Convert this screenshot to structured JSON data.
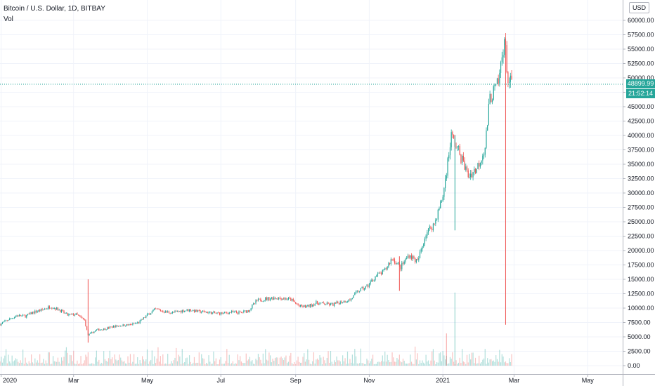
{
  "legend": {
    "title": "Bitcoin / U.S. Dollar, 1D, BITBAY",
    "indicator": "Vol"
  },
  "currency_label": "USD",
  "last_price": {
    "value_label": "48899.99",
    "countdown": "21:52:14",
    "color": "#26a69a"
  },
  "colors": {
    "up": "#26a69a",
    "down": "#ef5350",
    "grid": "#f0f3fa"
  },
  "chart_data": {
    "type": "candlestick",
    "symbol": "Bitcoin / U.S. Dollar",
    "interval": "1D",
    "exchange": "BITBAY",
    "ylim": [
      -1200,
      62500
    ],
    "y_ticks": [
      0,
      2500,
      5000,
      7500,
      10000,
      12500,
      15000,
      17500,
      20000,
      22500,
      25000,
      27500,
      30000,
      32500,
      35000,
      37500,
      40000,
      42500,
      45000,
      47500,
      50000,
      52500,
      55000,
      57500,
      60000
    ],
    "y_tick_labels": [
      "0.00",
      "2500.00",
      "5000.00",
      "7500.00",
      "10000.00",
      "12500.00",
      "15000.00",
      "17500.00",
      "20000.00",
      "22500.00",
      "25000.00",
      "27500.00",
      "30000.00",
      "32500.00",
      "35000.00",
      "37500.00",
      "40000.00",
      "42500.00",
      "45000.00",
      "47500.00",
      "50000.00",
      "52500.00",
      "55000.00",
      "57500.00",
      "60000.00"
    ],
    "x_ticks": [
      {
        "label": "2020",
        "date": "2020-01-01"
      },
      {
        "label": "Mar",
        "date": "2020-03-01"
      },
      {
        "label": "May",
        "date": "2020-05-01"
      },
      {
        "label": "Jul",
        "date": "2020-07-01"
      },
      {
        "label": "Sep",
        "date": "2020-09-01"
      },
      {
        "label": "Nov",
        "date": "2020-11-01"
      },
      {
        "label": "2021",
        "date": "2021-01-01"
      },
      {
        "label": "Mar",
        "date": "2021-03-01"
      },
      {
        "label": "May",
        "date": "2021-05-01"
      }
    ],
    "x_range": [
      "2019-12-31",
      "2021-05-30"
    ],
    "last_price": 48899.99,
    "price_series": [
      [
        "2019-12-31",
        7200
      ],
      [
        "2020-01-07",
        8000
      ],
      [
        "2020-01-14",
        8700
      ],
      [
        "2020-01-21",
        8600
      ],
      [
        "2020-01-28",
        9300
      ],
      [
        "2020-02-04",
        9700
      ],
      [
        "2020-02-11",
        10300
      ],
      [
        "2020-02-18",
        9700
      ],
      [
        "2020-02-25",
        8800
      ],
      [
        "2020-03-03",
        8900
      ],
      [
        "2020-03-10",
        7900
      ],
      [
        "2020-03-13",
        5300
      ],
      [
        "2020-03-20",
        6200
      ],
      [
        "2020-03-27",
        6400
      ],
      [
        "2020-04-03",
        6800
      ],
      [
        "2020-04-10",
        7000
      ],
      [
        "2020-04-17",
        7100
      ],
      [
        "2020-04-24",
        7500
      ],
      [
        "2020-05-01",
        8800
      ],
      [
        "2020-05-08",
        9800
      ],
      [
        "2020-05-15",
        9400
      ],
      [
        "2020-05-22",
        9200
      ],
      [
        "2020-05-29",
        9500
      ],
      [
        "2020-06-05",
        9700
      ],
      [
        "2020-06-12",
        9400
      ],
      [
        "2020-06-19",
        9300
      ],
      [
        "2020-06-26",
        9100
      ],
      [
        "2020-07-03",
        9100
      ],
      [
        "2020-07-10",
        9300
      ],
      [
        "2020-07-17",
        9200
      ],
      [
        "2020-07-24",
        9600
      ],
      [
        "2020-07-31",
        11300
      ],
      [
        "2020-08-07",
        11600
      ],
      [
        "2020-08-14",
        11800
      ],
      [
        "2020-08-21",
        11700
      ],
      [
        "2020-08-28",
        11500
      ],
      [
        "2020-09-04",
        10300
      ],
      [
        "2020-09-11",
        10300
      ],
      [
        "2020-09-18",
        10900
      ],
      [
        "2020-09-25",
        10700
      ],
      [
        "2020-10-02",
        10600
      ],
      [
        "2020-10-09",
        11100
      ],
      [
        "2020-10-16",
        11400
      ],
      [
        "2020-10-23",
        13000
      ],
      [
        "2020-10-30",
        13700
      ],
      [
        "2020-11-06",
        15500
      ],
      [
        "2020-11-13",
        16300
      ],
      [
        "2020-11-20",
        18700
      ],
      [
        "2020-11-27",
        17100
      ],
      [
        "2020-12-04",
        19300
      ],
      [
        "2020-12-11",
        18000
      ],
      [
        "2020-12-18",
        23000
      ],
      [
        "2020-12-25",
        24700
      ],
      [
        "2021-01-01",
        29400
      ],
      [
        "2021-01-08",
        40000
      ],
      [
        "2021-01-15",
        36800
      ],
      [
        "2021-01-22",
        33000
      ],
      [
        "2021-01-29",
        34200
      ],
      [
        "2021-02-05",
        38000
      ],
      [
        "2021-02-09",
        46500
      ],
      [
        "2021-02-16",
        49000
      ],
      [
        "2021-02-21",
        57000
      ],
      [
        "2021-02-24",
        49500
      ],
      [
        "2021-02-27",
        48900
      ]
    ],
    "spike_wicks": [
      {
        "date": "2020-03-13",
        "high": 15000,
        "low": 4000,
        "color": "down"
      },
      {
        "date": "2021-02-22",
        "high": 57000,
        "low": 7100,
        "color": "down"
      },
      {
        "date": "2021-01-11",
        "high": 40000,
        "low": 23500,
        "color": "up"
      },
      {
        "date": "2020-11-26",
        "high": 19000,
        "low": 13000,
        "color": "down"
      }
    ],
    "volume": {
      "scale_max": 15000,
      "notable_bars": [
        {
          "date": "2021-01-11",
          "value": 12700,
          "color": "up"
        },
        {
          "date": "2021-01-04",
          "value": 5600,
          "color": "down"
        }
      ]
    }
  }
}
